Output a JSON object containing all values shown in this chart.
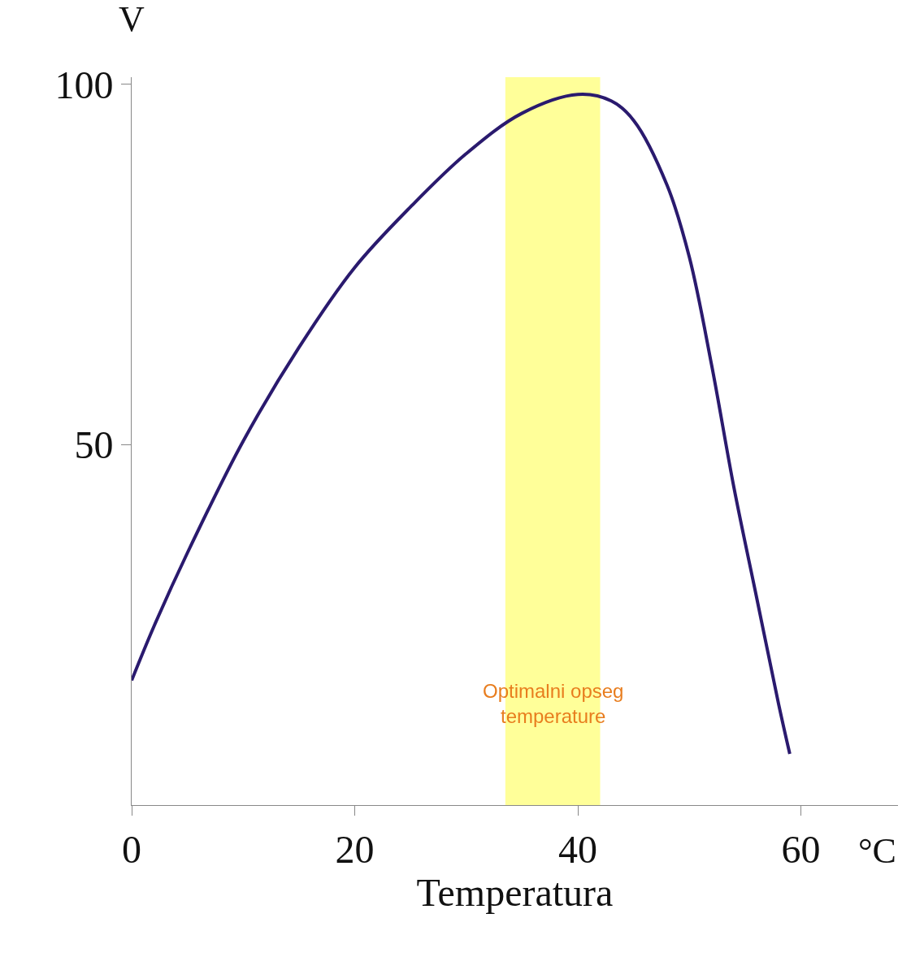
{
  "chart_data": {
    "type": "line",
    "xlabel": "Temperatura",
    "ylabel": "V",
    "annotations": [
      "°C"
    ],
    "x": [
      0,
      2,
      5,
      10,
      15,
      20,
      25,
      30,
      35,
      40,
      43,
      45,
      48,
      50,
      52,
      54,
      56,
      58,
      59
    ],
    "series": [
      {
        "color": "#2a1a6e",
        "values": [
          17.3,
          24.8,
          35,
          50.5,
          63.5,
          74.6,
          83,
          90.4,
          96,
          98.6,
          97.7,
          95,
          86,
          76,
          61,
          44,
          29,
          14,
          7.1
        ]
      }
    ],
    "xlim": [
      0,
      68.7
    ],
    "ylim": [
      0,
      101
    ],
    "xticks": [
      0,
      20,
      40,
      60
    ],
    "yticks": [
      50,
      100
    ],
    "bands": [
      {
        "axis": "x",
        "from": 33.5,
        "to": 42.0,
        "label": "Optimalni opseg temperature",
        "color": "#ffff99"
      }
    ],
    "grid": false,
    "legend": false,
    "marker": "none",
    "line_style": "solid"
  }
}
